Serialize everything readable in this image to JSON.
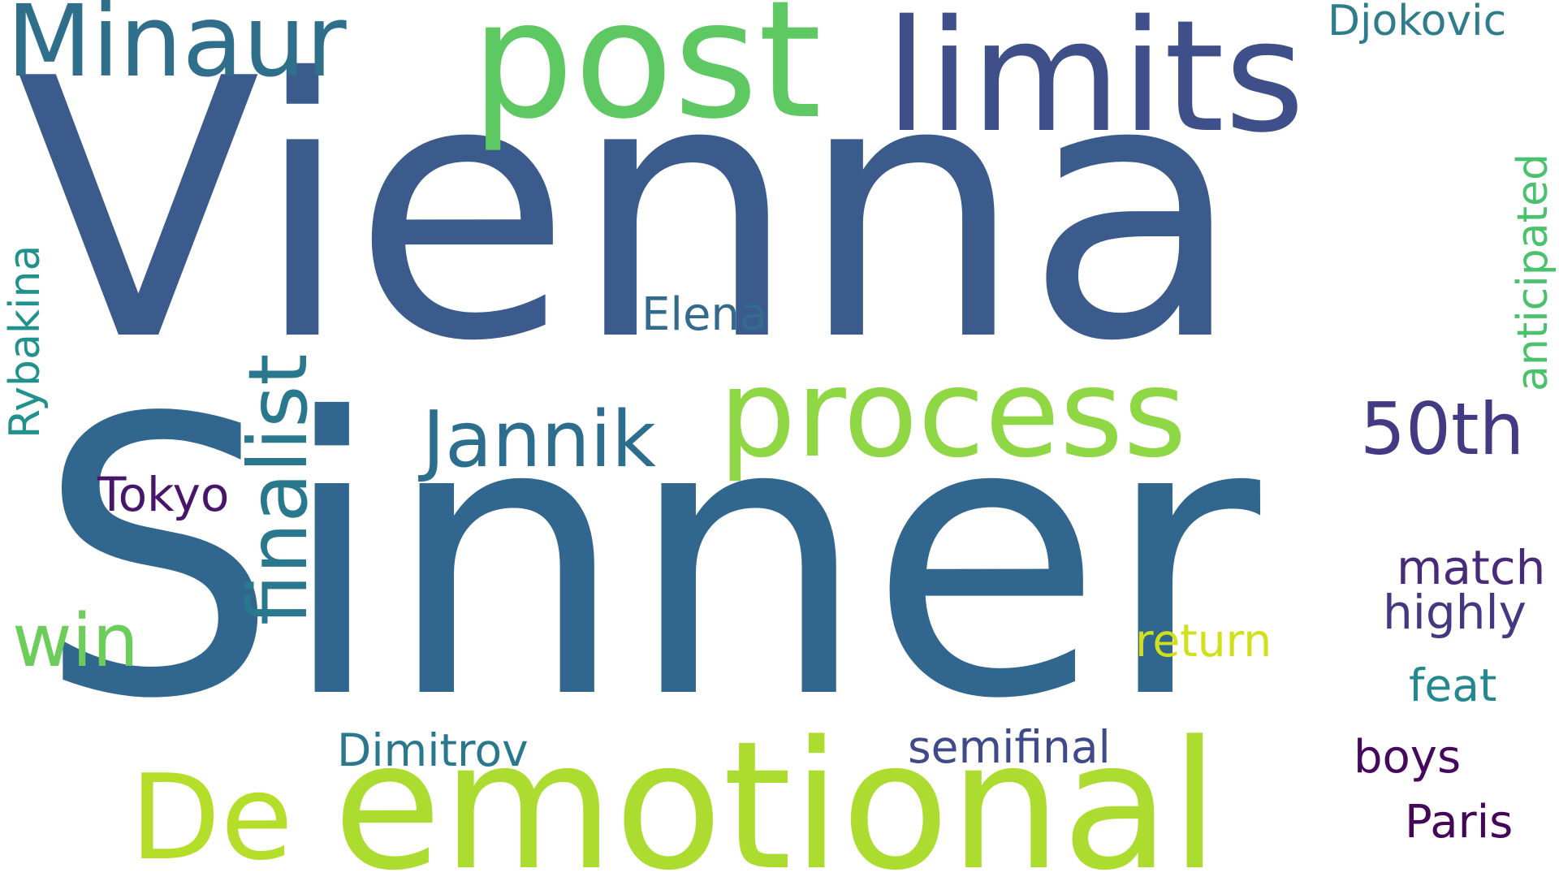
{
  "word_cloud": {
    "background": "#ffffff",
    "words": {
      "vienna": {
        "text": "Vienna",
        "color": "#3b5b8c"
      },
      "sinner": {
        "text": "Sinner",
        "color": "#31678e"
      },
      "minaur": {
        "text": "Minaur",
        "color": "#2f6f8b"
      },
      "post": {
        "text": "post",
        "color": "#5ec962"
      },
      "limits": {
        "text": "limits",
        "color": "#3f4f8a"
      },
      "djokovic": {
        "text": "Djokovic",
        "color": "#2f7c8c"
      },
      "process": {
        "text": "process",
        "color": "#8fd744"
      },
      "jannik": {
        "text": "Jannik",
        "color": "#2d6e8e"
      },
      "fiftieth": {
        "text": "50th",
        "color": "#433a84"
      },
      "elena": {
        "text": "Elena",
        "color": "#346a8d"
      },
      "tokyo": {
        "text": "Tokyo",
        "color": "#481668"
      },
      "win": {
        "text": "win",
        "color": "#6ccd5a"
      },
      "match": {
        "text": "match",
        "color": "#472a7a"
      },
      "highly": {
        "text": "highly",
        "color": "#453882"
      },
      "return": {
        "text": "return",
        "color": "#d0e11c"
      },
      "feat": {
        "text": "feat",
        "color": "#23898e"
      },
      "dimitrov": {
        "text": "Dimitrov",
        "color": "#2a788e"
      },
      "semifinal": {
        "text": "semifinal",
        "color": "#3e4a89"
      },
      "boys": {
        "text": "boys",
        "color": "#46085c"
      },
      "paris": {
        "text": "Paris",
        "color": "#450559"
      },
      "de": {
        "text": "De",
        "color": "#b5de2b"
      },
      "emotional": {
        "text": "emotional",
        "color": "#addc30"
      },
      "finalist": {
        "text": "finalist",
        "color": "#2a788e"
      },
      "rybakina": {
        "text": "Rybakina",
        "color": "#21918c"
      },
      "anticipated": {
        "text": "anticipated",
        "color": "#4ac16d"
      }
    }
  }
}
